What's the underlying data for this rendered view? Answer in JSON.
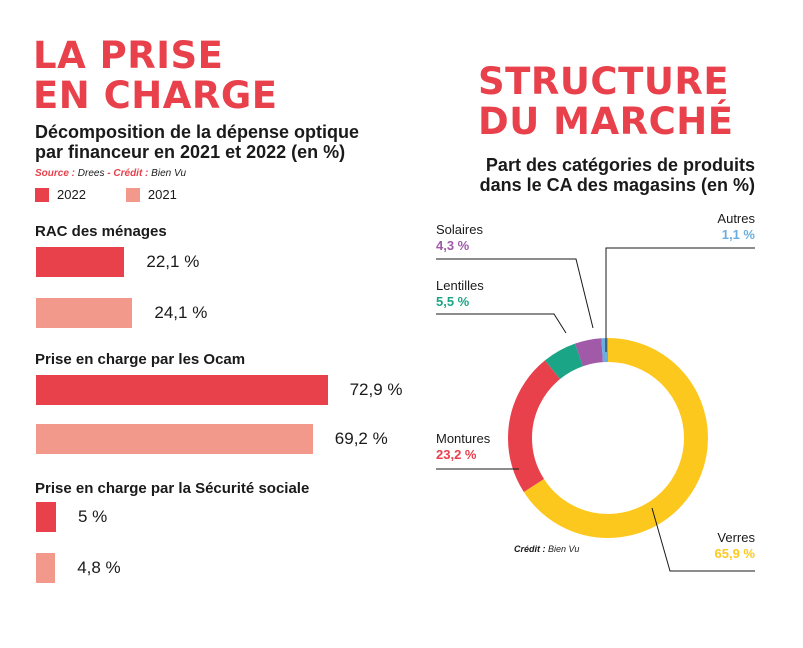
{
  "left": {
    "title_line1": "LA PRISE",
    "title_line2": "EN CHARGE",
    "subtitle_line1": "Décomposition de la dépense optique",
    "subtitle_line2": "par financeur en 2021 et 2022 (en %)",
    "source_label": "Source :",
    "source_value": "Drees",
    "credit_label": "Crédit :",
    "credit_value": "Bien Vu",
    "legend": [
      {
        "label": "2022",
        "color": "#e8414c"
      },
      {
        "label": "2021",
        "color": "#f3998c"
      }
    ]
  },
  "right": {
    "title_line1": "STRUCTURE",
    "title_line2": "DU MARCHÉ",
    "subtitle_line1": "Part des catégories de produits",
    "subtitle_line2": "dans le CA des magasins (en %)",
    "credit_label": "Crédit :",
    "credit_value": "Bien Vu"
  },
  "chart_data": [
    {
      "type": "bar",
      "orientation": "horizontal",
      "title": "Décomposition de la dépense optique par financeur en 2021 et 2022 (en %)",
      "categories": [
        "RAC des ménages",
        "Prise en charge par les Ocam",
        "Prise en charge par la Sécurité sociale"
      ],
      "series": [
        {
          "name": "2022",
          "color": "#e8414c",
          "values": [
            22.1,
            72.9,
            5
          ],
          "labels": [
            "22,1 %",
            "72,9 %",
            "5 %"
          ]
        },
        {
          "name": "2021",
          "color": "#f3998c",
          "values": [
            24.1,
            69.2,
            4.8
          ],
          "labels": [
            "24,1 %",
            "69,2 %",
            "4,8 %"
          ]
        }
      ],
      "xlim": [
        0,
        100
      ],
      "legend": "top-left"
    },
    {
      "type": "pie",
      "donut": true,
      "title": "Part des catégories de produits dans le CA des magasins (en %)",
      "slices": [
        {
          "name": "Verres",
          "value": 65.9,
          "label": "65,9 %",
          "color": "#fdc81e"
        },
        {
          "name": "Montures",
          "value": 23.2,
          "label": "23,2 %",
          "color": "#e8414c"
        },
        {
          "name": "Lentilles",
          "value": 5.5,
          "label": "5,5 %",
          "color": "#1aa586"
        },
        {
          "name": "Solaires",
          "value": 4.3,
          "label": "4,3 %",
          "color": "#a05aa8"
        },
        {
          "name": "Autres",
          "value": 1.1,
          "label": "1,1 %",
          "color": "#6aaee0"
        }
      ]
    }
  ]
}
